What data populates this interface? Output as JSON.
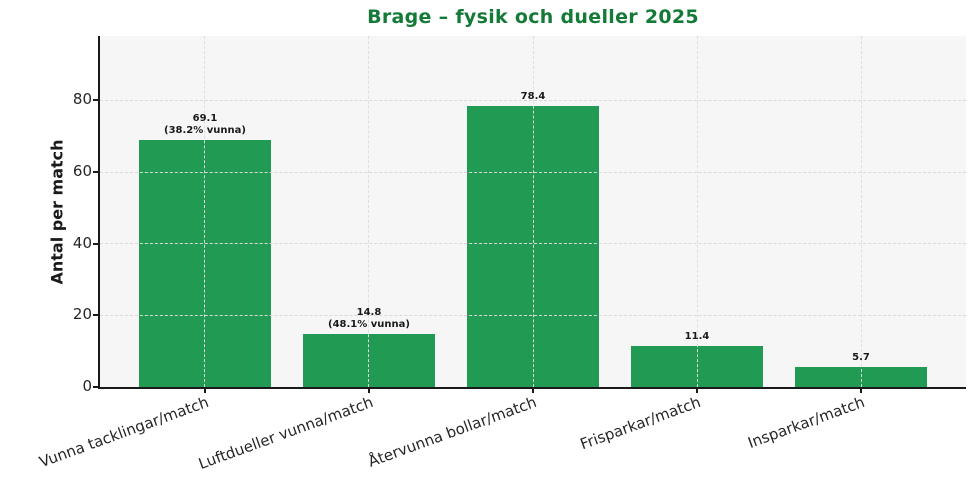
{
  "chart_data": {
    "type": "bar",
    "title": "Brage – fysik och dueller 2025",
    "ylabel": "Antal per match",
    "xlabel": "",
    "categories": [
      "Vunna tacklingar/match",
      "Luftdueller vunna/match",
      "Återvunna bollar/match",
      "Frisparkar/match",
      "Insparkar/match"
    ],
    "values": [
      69.1,
      14.8,
      78.4,
      11.4,
      5.7
    ],
    "bar_labels": [
      "69.1\n(38.2% vunna)",
      "14.8\n(48.1% vunna)",
      "78.4",
      "11.4",
      "5.7"
    ],
    "yticks": [
      0,
      20,
      40,
      60,
      80
    ],
    "ylim": [
      0,
      98
    ],
    "grid": "dashed horizontal and vertical gridlines",
    "legend": "none",
    "colors": {
      "bar": "#219a54",
      "title": "#147a37",
      "plot_background": "#f6f6f6",
      "figure_background": "#ffffff",
      "grid": "#dcdcdc",
      "spine": "#1a1a1a",
      "tick_label": "#262626",
      "value_label": "#1a1a1a"
    }
  }
}
